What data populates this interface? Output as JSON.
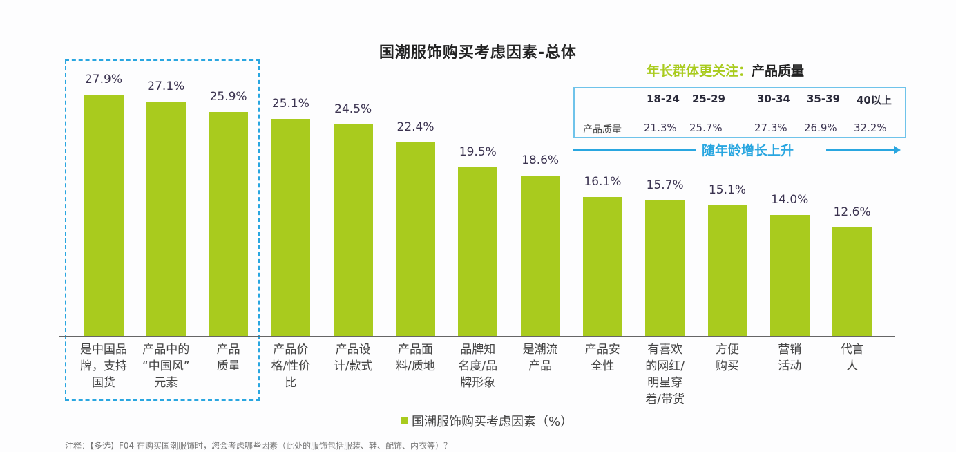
{
  "chart_data": {
    "type": "bar",
    "title": "国潮服饰购买考虑因素-总体",
    "categories": [
      "是中国品\n牌，支持\n国货",
      "产品中的\n“中国风”\n元素",
      "产品\n质量",
      "产品价\n格/性价\n比",
      "产品设\n计/款式",
      "产品面\n料/质地",
      "品牌知\n名度/品\n牌形象",
      "是潮流\n产品",
      "产品安\n全性",
      "有喜欢\n的网红/\n明星穿\n着/带货",
      "方便\n购买",
      "营销\n活动",
      "代言\n人"
    ],
    "values": [
      27.9,
      27.1,
      25.9,
      25.1,
      24.5,
      22.4,
      19.5,
      18.6,
      16.1,
      15.7,
      15.1,
      14.0,
      12.6
    ],
    "value_labels": [
      "27.9%",
      "27.1%",
      "25.9%",
      "25.1%",
      "24.5%",
      "22.4%",
      "19.5%",
      "18.6%",
      "16.1%",
      "15.7%",
      "15.1%",
      "14.0%",
      "12.6%"
    ],
    "series": [
      {
        "name": "国潮服饰购买考虑因素（%）",
        "color": "#a9cb1e"
      }
    ],
    "xlabel": "",
    "ylabel": "",
    "ylim": [
      0,
      30
    ],
    "grid": false,
    "legend_position": "bottom",
    "highlighted_categories": [
      0,
      1,
      2
    ],
    "annotation": {
      "heading_colored": "年长群体更关注：",
      "heading_plain": "产品质量",
      "table": {
        "row_label": "产品质量",
        "columns": [
          "18-24",
          "25-29",
          "30-34",
          "35-39",
          "40以上"
        ],
        "values": [
          "21.3%",
          "25.7%",
          "27.3%",
          "26.9%",
          "32.2%"
        ]
      },
      "trend_text": "随年龄增长上升"
    }
  },
  "legend": {
    "label": "国潮服饰购买考虑因素（%）"
  },
  "note": "注释：【多选】F04 在购买国潮服饰时，您会考虑哪些因素（此处的服饰包括服装、鞋、配饰、内衣等）？",
  "colors": {
    "bar": "#a9cb1e",
    "accent_blue": "#29a6e0"
  }
}
